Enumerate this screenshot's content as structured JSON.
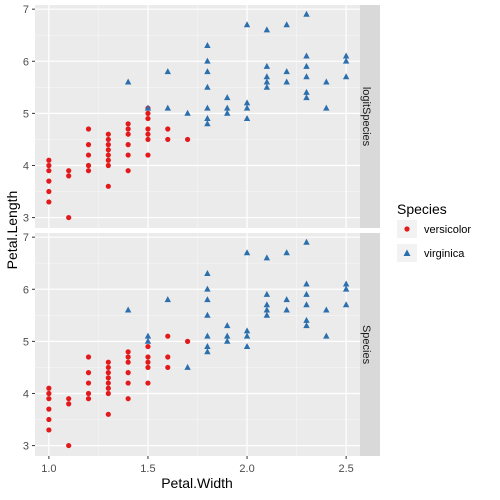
{
  "chart_data": {
    "type": "scatter",
    "xlabel": "Petal.Width",
    "ylabel": "Petal.Length",
    "xlim": [
      0.93,
      2.57
    ],
    "ylim": [
      2.8,
      7.08
    ],
    "x_ticks": [
      "1.0",
      "1.5",
      "2.0",
      "2.5"
    ],
    "x_tick_values": [
      1.0,
      1.5,
      2.0,
      2.5
    ],
    "y_ticks": [
      "3",
      "4",
      "5",
      "6",
      "7"
    ],
    "y_tick_values": [
      3,
      4,
      5,
      6,
      7
    ],
    "grid": true,
    "legend": {
      "title": "Species",
      "position": "right",
      "entries": [
        {
          "label": "versicolor",
          "shape": "circle",
          "color": "#e31a1c"
        },
        {
          "label": "virginica",
          "shape": "triangle",
          "color": "#2c6fad"
        }
      ]
    },
    "series_colors": {
      "versicolor": "#e31a1c",
      "virginica": "#2c6fad"
    },
    "panels": [
      {
        "strip_label": "logitSpecies",
        "series": [
          {
            "name": "versicolor",
            "points": [
              [
                1.0,
                4.1
              ],
              [
                1.0,
                4.0
              ],
              [
                1.0,
                3.9
              ],
              [
                1.0,
                3.7
              ],
              [
                1.0,
                3.5
              ],
              [
                1.0,
                3.3
              ],
              [
                1.1,
                3.9
              ],
              [
                1.1,
                3.8
              ],
              [
                1.1,
                3.0
              ],
              [
                1.2,
                4.7
              ],
              [
                1.2,
                4.4
              ],
              [
                1.2,
                4.2
              ],
              [
                1.2,
                4.0
              ],
              [
                1.2,
                3.9
              ],
              [
                1.3,
                4.6
              ],
              [
                1.3,
                4.5
              ],
              [
                1.3,
                4.4
              ],
              [
                1.3,
                4.3
              ],
              [
                1.3,
                4.2
              ],
              [
                1.3,
                4.1
              ],
              [
                1.3,
                4.0
              ],
              [
                1.3,
                3.6
              ],
              [
                1.4,
                4.8
              ],
              [
                1.4,
                4.7
              ],
              [
                1.4,
                4.6
              ],
              [
                1.4,
                4.4
              ],
              [
                1.4,
                4.2
              ],
              [
                1.4,
                3.9
              ],
              [
                1.5,
                5.1
              ],
              [
                1.5,
                5.0
              ],
              [
                1.5,
                4.9
              ],
              [
                1.5,
                4.7
              ],
              [
                1.5,
                4.6
              ],
              [
                1.5,
                4.5
              ],
              [
                1.5,
                4.2
              ],
              [
                1.6,
                4.7
              ],
              [
                1.6,
                4.5
              ],
              [
                1.7,
                4.5
              ]
            ]
          },
          {
            "name": "virginica",
            "points": [
              [
                1.4,
                5.6
              ],
              [
                1.5,
                5.1
              ],
              [
                1.6,
                5.8
              ],
              [
                1.6,
                5.1
              ],
              [
                1.7,
                5.0
              ],
              [
                1.8,
                6.3
              ],
              [
                1.8,
                6.0
              ],
              [
                1.8,
                5.8
              ],
              [
                1.8,
                5.5
              ],
              [
                1.8,
                5.1
              ],
              [
                1.8,
                4.9
              ],
              [
                1.8,
                4.8
              ],
              [
                1.9,
                5.3
              ],
              [
                1.9,
                5.1
              ],
              [
                1.9,
                5.0
              ],
              [
                2.0,
                6.7
              ],
              [
                2.0,
                5.2
              ],
              [
                2.0,
                5.1
              ],
              [
                2.0,
                4.9
              ],
              [
                2.1,
                6.6
              ],
              [
                2.1,
                5.9
              ],
              [
                2.1,
                5.7
              ],
              [
                2.1,
                5.6
              ],
              [
                2.1,
                5.5
              ],
              [
                2.2,
                6.7
              ],
              [
                2.2,
                5.8
              ],
              [
                2.2,
                5.6
              ],
              [
                2.3,
                6.9
              ],
              [
                2.3,
                6.1
              ],
              [
                2.3,
                5.9
              ],
              [
                2.3,
                5.7
              ],
              [
                2.3,
                5.4
              ],
              [
                2.3,
                5.3
              ],
              [
                2.4,
                5.6
              ],
              [
                2.4,
                5.1
              ],
              [
                2.5,
                6.1
              ],
              [
                2.5,
                6.0
              ],
              [
                2.5,
                5.7
              ]
            ]
          }
        ]
      },
      {
        "strip_label": "Species",
        "series": [
          {
            "name": "versicolor",
            "points": [
              [
                1.0,
                4.1
              ],
              [
                1.0,
                4.0
              ],
              [
                1.0,
                3.9
              ],
              [
                1.0,
                3.7
              ],
              [
                1.0,
                3.5
              ],
              [
                1.0,
                3.3
              ],
              [
                1.1,
                3.9
              ],
              [
                1.1,
                3.8
              ],
              [
                1.1,
                3.0
              ],
              [
                1.2,
                4.7
              ],
              [
                1.2,
                4.4
              ],
              [
                1.2,
                4.2
              ],
              [
                1.2,
                4.0
              ],
              [
                1.2,
                3.9
              ],
              [
                1.3,
                4.6
              ],
              [
                1.3,
                4.5
              ],
              [
                1.3,
                4.4
              ],
              [
                1.3,
                4.3
              ],
              [
                1.3,
                4.2
              ],
              [
                1.3,
                4.1
              ],
              [
                1.3,
                4.0
              ],
              [
                1.3,
                3.6
              ],
              [
                1.4,
                4.8
              ],
              [
                1.4,
                4.7
              ],
              [
                1.4,
                4.6
              ],
              [
                1.4,
                4.4
              ],
              [
                1.4,
                4.2
              ],
              [
                1.4,
                3.9
              ],
              [
                1.5,
                4.9
              ],
              [
                1.5,
                4.7
              ],
              [
                1.5,
                4.6
              ],
              [
                1.5,
                4.5
              ],
              [
                1.5,
                4.2
              ],
              [
                1.6,
                5.1
              ],
              [
                1.6,
                4.7
              ],
              [
                1.6,
                4.5
              ],
              [
                1.7,
                5.0
              ]
            ]
          },
          {
            "name": "virginica",
            "points": [
              [
                1.4,
                5.6
              ],
              [
                1.5,
                5.1
              ],
              [
                1.5,
                5.0
              ],
              [
                1.6,
                5.8
              ],
              [
                1.7,
                4.5
              ],
              [
                1.8,
                6.3
              ],
              [
                1.8,
                6.0
              ],
              [
                1.8,
                5.8
              ],
              [
                1.8,
                5.5
              ],
              [
                1.8,
                5.1
              ],
              [
                1.8,
                4.9
              ],
              [
                1.8,
                4.8
              ],
              [
                1.9,
                5.3
              ],
              [
                1.9,
                5.1
              ],
              [
                1.9,
                5.0
              ],
              [
                2.0,
                6.7
              ],
              [
                2.0,
                5.2
              ],
              [
                2.0,
                5.1
              ],
              [
                2.0,
                4.9
              ],
              [
                2.1,
                6.6
              ],
              [
                2.1,
                5.9
              ],
              [
                2.1,
                5.7
              ],
              [
                2.1,
                5.6
              ],
              [
                2.1,
                5.5
              ],
              [
                2.2,
                6.7
              ],
              [
                2.2,
                5.8
              ],
              [
                2.2,
                5.6
              ],
              [
                2.3,
                6.9
              ],
              [
                2.3,
                6.1
              ],
              [
                2.3,
                5.9
              ],
              [
                2.3,
                5.7
              ],
              [
                2.3,
                5.4
              ],
              [
                2.3,
                5.3
              ],
              [
                2.4,
                5.6
              ],
              [
                2.4,
                5.1
              ],
              [
                2.5,
                6.1
              ],
              [
                2.5,
                6.0
              ],
              [
                2.5,
                5.7
              ]
            ]
          }
        ]
      }
    ]
  }
}
